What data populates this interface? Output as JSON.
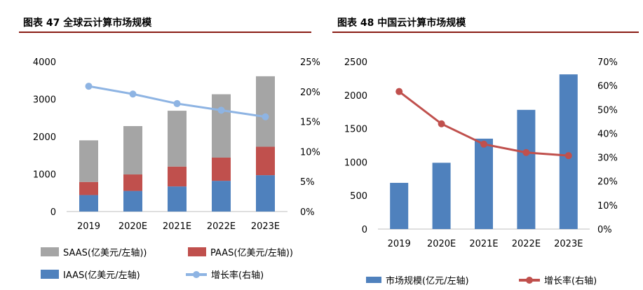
{
  "left": {
    "title": "图表 47 全球云计算市场规模",
    "legend": {
      "saas": "SAAS(亿美元/左轴))",
      "paas": "PAAS(亿美元/左轴))",
      "iaas": "IAAS(亿美元/左轴)",
      "growth": "增长率(右轴)"
    }
  },
  "right": {
    "title": "图表 48 中国云计算市场规模",
    "legend": {
      "market": "市场规模(亿元/左轴)",
      "growth": "增长率(右轴)"
    }
  },
  "colors": {
    "saas": "#a5a5a5",
    "paas": "#c0504d",
    "iaas": "#4f81bd",
    "growth_left": "#8eb4e3",
    "market_bar": "#4f81bd",
    "growth_right": "#c0504d",
    "title_rule": "#8a1c14"
  },
  "chart_data": [
    {
      "type": "bar",
      "stacked": true,
      "categories": [
        "2019",
        "2020E",
        "2021E",
        "2022E",
        "2023E"
      ],
      "series": [
        {
          "name": "IAAS(亿美元/左轴)",
          "values": [
            440,
            550,
            670,
            820,
            970
          ]
        },
        {
          "name": "PAAS(亿美元/左轴))",
          "values": [
            350,
            440,
            530,
            620,
            760
          ]
        },
        {
          "name": "SAAS(亿美元/左轴))",
          "values": [
            1110,
            1290,
            1490,
            1690,
            1880
          ]
        }
      ],
      "line_series": {
        "name": "增长率(右轴)",
        "values": [
          20.9,
          19.6,
          18.0,
          16.9,
          15.8
        ],
        "axis": "right"
      },
      "y_left": {
        "min": 0,
        "max": 4000,
        "ticks": [
          "0",
          "1000",
          "2000",
          "3000",
          "4000"
        ]
      },
      "y_right": {
        "min": 0,
        "max": 25,
        "ticks": [
          "0%",
          "5%",
          "10%",
          "15%",
          "20%",
          "25%"
        ]
      },
      "legend_position": "bottom",
      "grid": false
    },
    {
      "type": "bar",
      "categories": [
        "2019",
        "2020E",
        "2021E",
        "2022E",
        "2023E"
      ],
      "series": [
        {
          "name": "市场规模(亿元/左轴)",
          "values": [
            690,
            990,
            1350,
            1780,
            2310
          ]
        }
      ],
      "line_series": {
        "name": "增长率(右轴)",
        "values": [
          57.5,
          44.0,
          35.5,
          32.0,
          30.7
        ],
        "axis": "right"
      },
      "y_left": {
        "min": 0,
        "max": 2500,
        "ticks": [
          "0",
          "500",
          "1000",
          "1500",
          "2000",
          "2500"
        ]
      },
      "y_right": {
        "min": 0,
        "max": 70,
        "ticks": [
          "0%",
          "10%",
          "20%",
          "30%",
          "40%",
          "50%",
          "60%",
          "70%"
        ]
      },
      "legend_position": "bottom",
      "grid": false
    }
  ]
}
